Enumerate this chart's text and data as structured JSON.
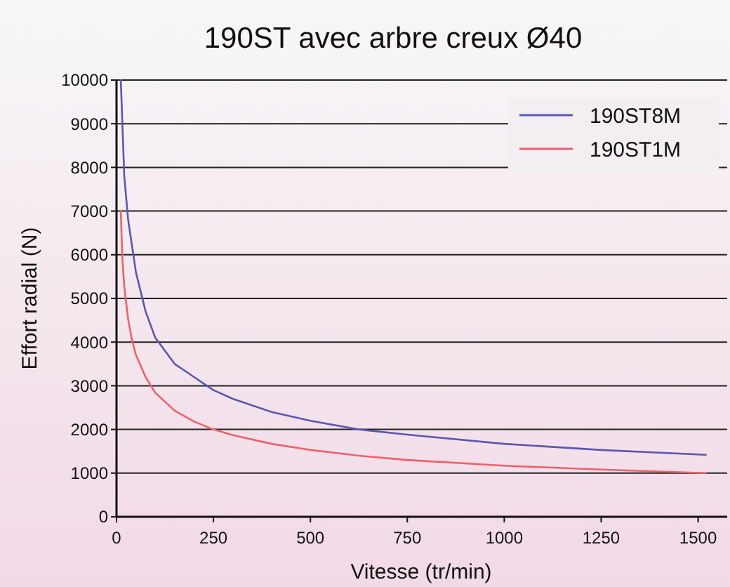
{
  "chart_data": {
    "type": "line",
    "title": "190ST avec arbre creux Ø40",
    "xlabel": "Vitesse (tr/min)",
    "ylabel": "Effort radial (N)",
    "xlim": [
      0,
      1575
    ],
    "xticks": [
      0,
      250,
      500,
      750,
      1000,
      1250,
      1500
    ],
    "ylim": [
      0,
      10000
    ],
    "yticks": [
      0,
      1000,
      2000,
      3000,
      4000,
      5000,
      6000,
      7000,
      8000,
      9000,
      10000
    ],
    "grid": "y",
    "legend": "top right",
    "marker": "none",
    "line_style": "solid",
    "series": [
      {
        "name": "190ST8M",
        "color": "#5b57b0",
        "x": [
          11,
          20,
          30,
          50,
          75,
          100,
          150,
          200,
          250,
          300,
          400,
          500,
          625,
          750,
          1000,
          1250,
          1520
        ],
        "values": [
          10000,
          7800,
          6800,
          5600,
          4700,
          4100,
          3500,
          3200,
          2900,
          2700,
          2400,
          2200,
          2000,
          1880,
          1670,
          1530,
          1420
        ]
      },
      {
        "name": "190ST1M",
        "color": "#f0606a",
        "x": [
          11,
          15,
          20,
          30,
          40,
          50,
          75,
          100,
          150,
          200,
          250,
          300,
          400,
          500,
          625,
          750,
          1000,
          1250,
          1520
        ],
        "values": [
          7000,
          5930,
          5270,
          4520,
          4040,
          3710,
          3200,
          2840,
          2430,
          2180,
          2000,
          1870,
          1670,
          1530,
          1400,
          1300,
          1170,
          1080,
          1000
        ]
      }
    ]
  }
}
